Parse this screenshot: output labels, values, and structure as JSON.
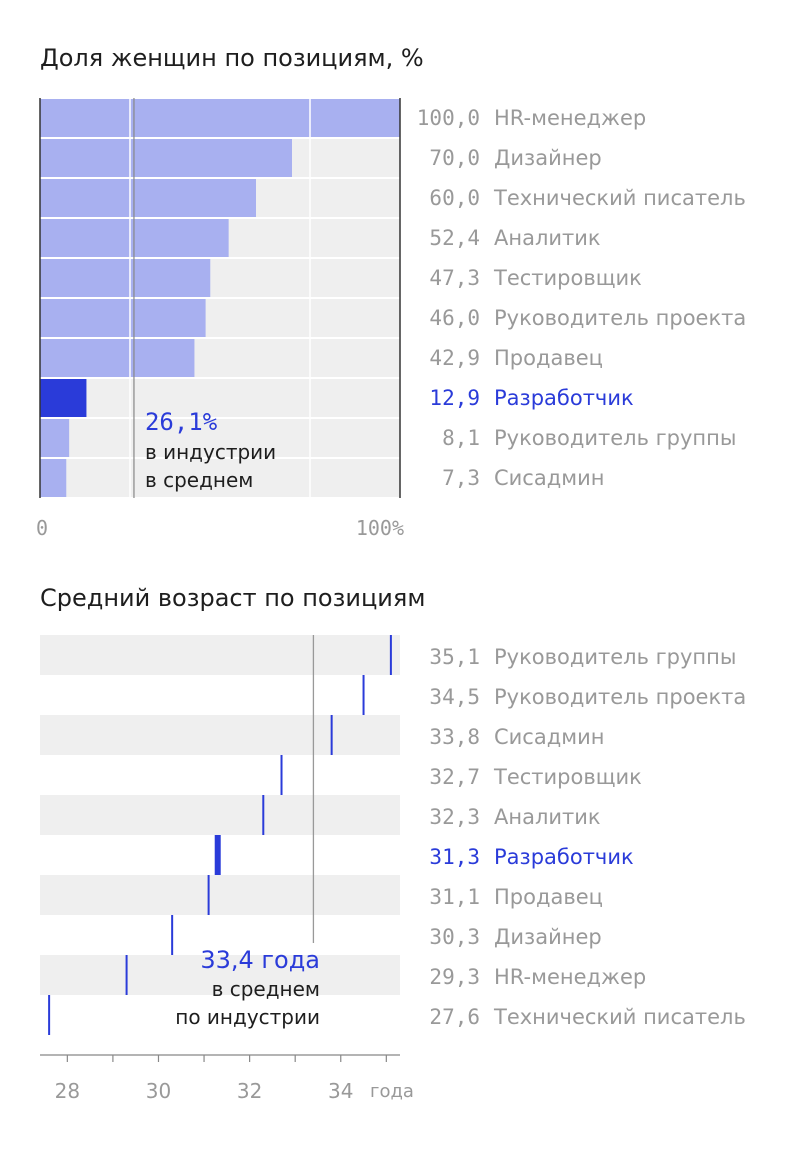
{
  "chart_data": [
    {
      "type": "bar",
      "title": "Доля женщин по позициям, %",
      "categories": [
        "HR-менеджер",
        "Дизайнер",
        "Технический писатель",
        "Аналитик",
        "Тестировщик",
        "Руководитель проекта",
        "Продавец",
        "Разработчик",
        "Руководитель группы",
        "Сисадмин"
      ],
      "values": [
        100.0,
        70.0,
        60.0,
        52.4,
        47.3,
        46.0,
        42.9,
        12.9,
        8.1,
        7.3
      ],
      "value_labels": [
        "100,0",
        "70,0",
        "60,0",
        "52,4",
        "47,3",
        "46,0",
        "42,9",
        "12,9",
        "8,1",
        "7,3"
      ],
      "highlight": "Разработчик",
      "xlim": [
        0,
        100
      ],
      "tick_labels": [
        "0",
        "100%"
      ],
      "reference": {
        "value": 26.1,
        "label": "26,1%",
        "text_line1": "в индустрии",
        "text_line2": "в среднем"
      },
      "colors": {
        "bar": "#a8b0f0",
        "highlight": "#2a3bd9",
        "track": "#efefef",
        "label": "#999999",
        "highlight_label": "#2a3bd9"
      }
    },
    {
      "type": "scatter",
      "title": "Средний возраст по позициям",
      "categories": [
        "Руководитель группы",
        "Руководитель проекта",
        "Сисадмин",
        "Тестировщик",
        "Аналитик",
        "Разработчик",
        "Продавец",
        "Дизайнер",
        "HR-менеджер",
        "Технический писатель"
      ],
      "values": [
        35.1,
        34.5,
        33.8,
        32.7,
        32.3,
        31.3,
        31.1,
        30.3,
        29.3,
        27.6
      ],
      "value_labels": [
        "35,1",
        "34,5",
        "33,8",
        "32,7",
        "32,3",
        "31,3",
        "31,1",
        "30,3",
        "29,3",
        "27,6"
      ],
      "highlight": "Разработчик",
      "xlim": [
        27.4,
        35.3
      ],
      "ticks": [
        28,
        30,
        32,
        34
      ],
      "tick_labels": [
        "28",
        "30",
        "32",
        "34"
      ],
      "unit_label": "года",
      "reference": {
        "value": 33.4,
        "label": "33,4 года",
        "text_line1": "в среднем",
        "text_line2": "по индустрии"
      },
      "colors": {
        "mark": "#2a3bd9",
        "track": "#efefef",
        "label": "#999999",
        "highlight_label": "#2a3bd9"
      }
    }
  ]
}
